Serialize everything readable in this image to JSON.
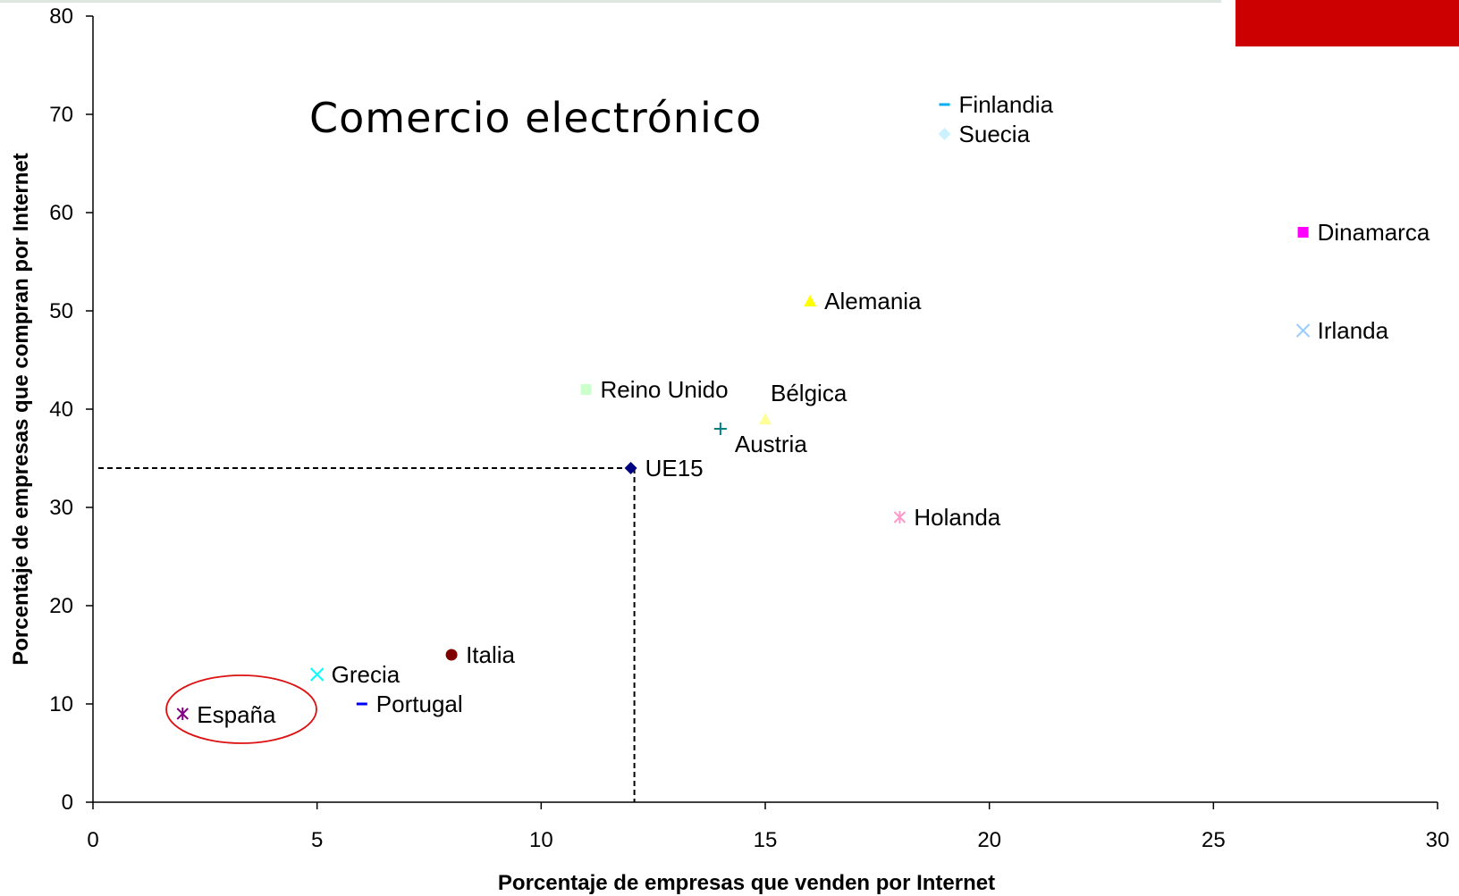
{
  "colors": {
    "top_rule": "#dfe6df",
    "corner_block": "#cc0000",
    "highlight_ellipse": "#dd1111",
    "reference_line": "#000000"
  },
  "chart_data": {
    "type": "scatter",
    "title": "Comercio electrónico",
    "xlabel": "Porcentaje de empresas que venden por Internet",
    "ylabel": "Porcentaje de empresas que compran por Internet",
    "xlim": [
      0,
      30
    ],
    "ylim": [
      0,
      80
    ],
    "xticks": [
      0,
      5,
      10,
      15,
      20,
      25,
      30
    ],
    "yticks": [
      0,
      10,
      20,
      30,
      40,
      50,
      60,
      70,
      80
    ],
    "xtick_labels": [
      "0",
      "5",
      "10",
      "15",
      "20",
      "25",
      "30"
    ],
    "ytick_labels": [
      "0",
      "10",
      "20",
      "30",
      "40",
      "50",
      "60",
      "70",
      "80"
    ],
    "grid": false,
    "legend": "none",
    "reference_point": {
      "label": "UE15",
      "x": 12,
      "y": 34
    },
    "highlight": "España",
    "points": [
      {
        "label": "Finlandia",
        "x": 19,
        "y": 71,
        "marker": "dash",
        "color": "#00b0f0"
      },
      {
        "label": "Suecia",
        "x": 19,
        "y": 68,
        "marker": "diamond",
        "color": "#ccf2ff"
      },
      {
        "label": "Dinamarca",
        "x": 27,
        "y": 58,
        "marker": "square",
        "color": "#ff00ff"
      },
      {
        "label": "Alemania",
        "x": 16,
        "y": 51,
        "marker": "triangle",
        "color": "#ffff00"
      },
      {
        "label": "Irlanda",
        "x": 27,
        "y": 48,
        "marker": "x",
        "color": "#99ccff"
      },
      {
        "label": "Reino Unido",
        "x": 11,
        "y": 42,
        "marker": "square",
        "color": "#ccffcc"
      },
      {
        "label": "Bélgica",
        "x": 15,
        "y": 39,
        "marker": "triangle",
        "color": "#ffff99"
      },
      {
        "label": "Austria",
        "x": 14,
        "y": 38,
        "marker": "plus",
        "color": "#008080"
      },
      {
        "label": "UE15",
        "x": 12,
        "y": 34,
        "marker": "diamond",
        "color": "#000080"
      },
      {
        "label": "Holanda",
        "x": 18,
        "y": 29,
        "marker": "asterisk",
        "color": "#ff99cc"
      },
      {
        "label": "Italia",
        "x": 8,
        "y": 15,
        "marker": "circle",
        "color": "#800000"
      },
      {
        "label": "Grecia",
        "x": 5,
        "y": 13,
        "marker": "x",
        "color": "#00ffff"
      },
      {
        "label": "Portugal",
        "x": 6,
        "y": 10,
        "marker": "dash",
        "color": "#0000ff"
      },
      {
        "label": "España",
        "x": 2,
        "y": 9,
        "marker": "asterisk",
        "color": "#800080"
      }
    ]
  }
}
